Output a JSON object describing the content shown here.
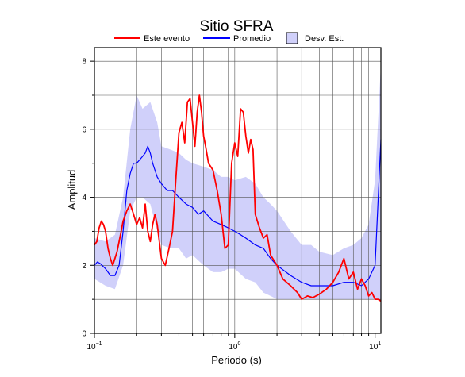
{
  "chart_data": {
    "type": "line",
    "title": "Sitio SFRA",
    "xlabel": "Periodo (s)",
    "ylabel": "Amplitud",
    "xscale": "log",
    "xlim": [
      0.1,
      11
    ],
    "ylim": [
      0,
      8.4
    ],
    "grid": true,
    "legend_position": "top",
    "x_ticks": [
      {
        "value": 0.1,
        "base": "10",
        "exp": "−1"
      },
      {
        "value": 1,
        "base": "10",
        "exp": "0"
      },
      {
        "value": 10,
        "base": "10",
        "exp": "1"
      }
    ],
    "y_ticks": [
      {
        "value": 0,
        "label": "0"
      },
      {
        "value": 2,
        "label": "2"
      },
      {
        "value": 4,
        "label": "4"
      },
      {
        "value": 6,
        "label": "6"
      },
      {
        "value": 8,
        "label": "8"
      }
    ],
    "legend": [
      {
        "label": "Este evento",
        "kind": "line",
        "color": "#ff0000"
      },
      {
        "label": "Promedio",
        "kind": "line",
        "color": "#0000ff"
      },
      {
        "label": "Desv. Est.",
        "kind": "band",
        "color": "#d0d0fa"
      }
    ],
    "band": {
      "name": "Desv. Est.",
      "color": "#d0d0fa",
      "x": [
        0.1,
        0.12,
        0.14,
        0.16,
        0.18,
        0.2,
        0.22,
        0.25,
        0.28,
        0.3,
        0.35,
        0.4,
        0.45,
        0.5,
        0.6,
        0.7,
        0.8,
        0.9,
        1.0,
        1.2,
        1.4,
        1.6,
        1.8,
        2.0,
        2.5,
        3.0,
        3.5,
        4.0,
        5.0,
        6.0,
        7.0,
        8.0,
        9.0,
        10.0,
        11.0
      ],
      "upper": [
        2.8,
        2.7,
        2.9,
        4.0,
        6.0,
        7.0,
        6.6,
        6.8,
        6.2,
        5.5,
        5.4,
        5.3,
        5.1,
        5.0,
        4.9,
        4.8,
        4.6,
        4.6,
        4.5,
        4.6,
        4.4,
        4.0,
        3.8,
        3.6,
        3.0,
        2.6,
        2.6,
        2.4,
        2.3,
        2.5,
        2.6,
        2.8,
        3.2,
        4.5,
        7.9
      ],
      "lower": [
        1.6,
        1.4,
        1.3,
        2.0,
        3.6,
        4.0,
        4.0,
        3.8,
        3.0,
        2.6,
        2.5,
        2.5,
        2.2,
        2.3,
        2.0,
        1.8,
        1.8,
        1.9,
        1.9,
        1.6,
        1.5,
        1.2,
        1.1,
        1.0,
        1.0,
        1.0,
        1.0,
        1.0,
        1.0,
        1.0,
        1.0,
        1.0,
        1.0,
        1.0,
        1.0
      ]
    },
    "series": [
      {
        "name": "Promedio",
        "color": "#0000ff",
        "x": [
          0.1,
          0.105,
          0.11,
          0.12,
          0.13,
          0.14,
          0.15,
          0.16,
          0.17,
          0.18,
          0.19,
          0.2,
          0.21,
          0.22,
          0.23,
          0.24,
          0.25,
          0.26,
          0.28,
          0.3,
          0.33,
          0.36,
          0.4,
          0.45,
          0.5,
          0.55,
          0.6,
          0.7,
          0.8,
          0.9,
          1.0,
          1.1,
          1.2,
          1.4,
          1.6,
          1.8,
          2.0,
          2.5,
          3.0,
          3.5,
          4.0,
          5.0,
          6.0,
          7.0,
          8.0,
          9.0,
          10.0,
          11.0
        ],
        "y": [
          2.0,
          2.1,
          2.05,
          1.9,
          1.7,
          1.7,
          2.0,
          3.0,
          4.2,
          4.7,
          5.0,
          5.0,
          5.1,
          5.2,
          5.3,
          5.5,
          5.3,
          5.0,
          4.6,
          4.4,
          4.2,
          4.2,
          4.0,
          3.8,
          3.7,
          3.5,
          3.6,
          3.3,
          3.2,
          3.1,
          3.0,
          2.9,
          2.8,
          2.6,
          2.5,
          2.2,
          2.0,
          1.7,
          1.5,
          1.4,
          1.4,
          1.4,
          1.5,
          1.5,
          1.4,
          1.6,
          2.0,
          5.7
        ]
      },
      {
        "name": "Este evento",
        "color": "#ff0000",
        "x": [
          0.1,
          0.104,
          0.108,
          0.112,
          0.116,
          0.12,
          0.125,
          0.13,
          0.135,
          0.14,
          0.145,
          0.15,
          0.155,
          0.16,
          0.17,
          0.18,
          0.19,
          0.2,
          0.21,
          0.22,
          0.23,
          0.24,
          0.25,
          0.26,
          0.27,
          0.28,
          0.3,
          0.32,
          0.34,
          0.36,
          0.38,
          0.4,
          0.42,
          0.44,
          0.46,
          0.48,
          0.5,
          0.52,
          0.54,
          0.56,
          0.58,
          0.6,
          0.62,
          0.65,
          0.7,
          0.75,
          0.8,
          0.85,
          0.9,
          0.95,
          1.0,
          1.05,
          1.1,
          1.15,
          1.2,
          1.25,
          1.3,
          1.35,
          1.4,
          1.5,
          1.6,
          1.7,
          1.8,
          2.0,
          2.2,
          2.5,
          2.8,
          3.0,
          3.3,
          3.6,
          4.0,
          4.5,
          5.0,
          5.5,
          6.0,
          6.5,
          7.0,
          7.5,
          8.0,
          8.5,
          9.0,
          9.5,
          10.0,
          10.5,
          11.0
        ],
        "y": [
          2.6,
          2.7,
          3.1,
          3.3,
          3.2,
          3.0,
          2.5,
          2.2,
          2.0,
          2.2,
          2.4,
          2.7,
          3.0,
          3.3,
          3.6,
          3.8,
          3.5,
          3.2,
          3.4,
          3.1,
          3.8,
          3.0,
          2.7,
          3.2,
          3.5,
          3.2,
          2.2,
          2.0,
          2.5,
          3.0,
          4.5,
          5.9,
          6.2,
          5.6,
          6.8,
          6.9,
          6.2,
          5.5,
          6.5,
          7.0,
          6.5,
          5.8,
          5.5,
          5.0,
          4.8,
          4.2,
          3.5,
          2.5,
          2.6,
          5.0,
          5.6,
          5.2,
          6.6,
          6.5,
          5.8,
          5.3,
          5.7,
          5.4,
          3.5,
          3.1,
          2.8,
          2.9,
          2.3,
          2.0,
          1.6,
          1.4,
          1.2,
          1.0,
          1.1,
          1.05,
          1.15,
          1.3,
          1.5,
          1.8,
          2.2,
          1.6,
          1.8,
          1.3,
          1.6,
          1.4,
          1.1,
          1.2,
          1.0,
          1.0,
          0.95
        ]
      }
    ]
  }
}
